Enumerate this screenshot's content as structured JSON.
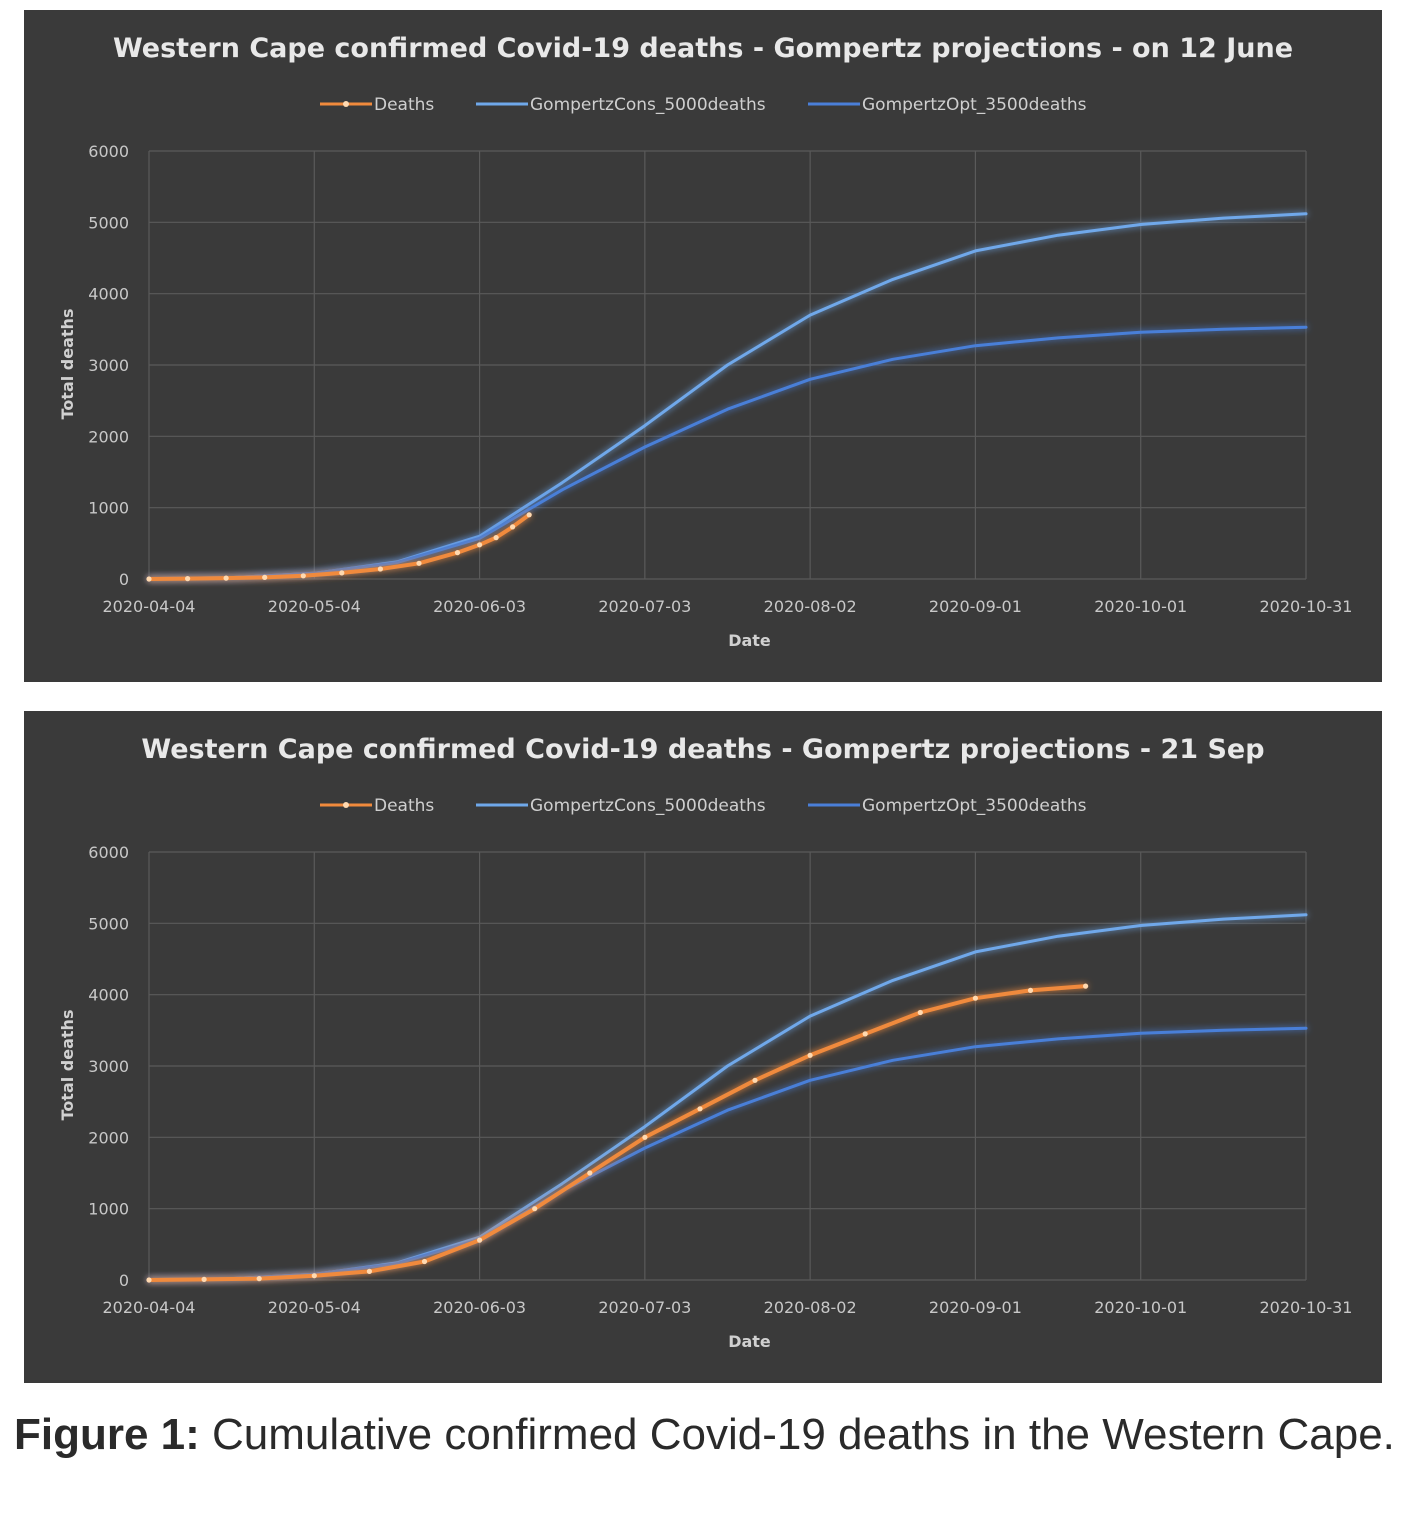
{
  "chart_data": [
    {
      "type": "line",
      "title": "Western Cape confirmed Covid-19 deaths - Gompertz projections - on 12 June",
      "xlabel": "Date",
      "ylabel": "Total deaths",
      "ylim": [
        0,
        6000
      ],
      "xlim": [
        "2020-04-04",
        "2020-10-31"
      ],
      "x_ticks": [
        "2020-04-04",
        "2020-05-04",
        "2020-06-03",
        "2020-07-03",
        "2020-08-02",
        "2020-09-01",
        "2020-10-01",
        "2020-10-31"
      ],
      "y_ticks": [
        0,
        1000,
        2000,
        3000,
        4000,
        5000,
        6000
      ],
      "grid": true,
      "legend_position": "top",
      "series": [
        {
          "name": "Deaths",
          "color": "#f08a3c",
          "marker": true,
          "points": [
            [
              "2020-04-04",
              0
            ],
            [
              "2020-04-11",
              6
            ],
            [
              "2020-04-18",
              12
            ],
            [
              "2020-04-25",
              22
            ],
            [
              "2020-05-02",
              45
            ],
            [
              "2020-05-09",
              85
            ],
            [
              "2020-05-16",
              140
            ],
            [
              "2020-05-23",
              220
            ],
            [
              "2020-05-30",
              370
            ],
            [
              "2020-06-03",
              480
            ],
            [
              "2020-06-06",
              580
            ],
            [
              "2020-06-09",
              730
            ],
            [
              "2020-06-12",
              900
            ]
          ]
        },
        {
          "name": "GompertzCons_5000deaths",
          "color": "#6fa8ea",
          "points": [
            [
              "2020-04-04",
              5
            ],
            [
              "2020-04-19",
              20
            ],
            [
              "2020-05-04",
              80
            ],
            [
              "2020-05-19",
              240
            ],
            [
              "2020-06-03",
              600
            ],
            [
              "2020-06-18",
              1350
            ],
            [
              "2020-07-03",
              2150
            ],
            [
              "2020-07-18",
              3000
            ],
            [
              "2020-08-02",
              3700
            ],
            [
              "2020-08-17",
              4200
            ],
            [
              "2020-09-01",
              4600
            ],
            [
              "2020-09-16",
              4820
            ],
            [
              "2020-10-01",
              4970
            ],
            [
              "2020-10-16",
              5060
            ],
            [
              "2020-10-31",
              5120
            ]
          ]
        },
        {
          "name": "GompertzOpt_3500deaths",
          "color": "#4a7fd8",
          "points": [
            [
              "2020-04-04",
              5
            ],
            [
              "2020-04-19",
              20
            ],
            [
              "2020-05-04",
              80
            ],
            [
              "2020-05-19",
              230
            ],
            [
              "2020-06-03",
              570
            ],
            [
              "2020-06-18",
              1250
            ],
            [
              "2020-07-03",
              1850
            ],
            [
              "2020-07-18",
              2380
            ],
            [
              "2020-08-02",
              2800
            ],
            [
              "2020-08-17",
              3080
            ],
            [
              "2020-09-01",
              3270
            ],
            [
              "2020-09-16",
              3380
            ],
            [
              "2020-10-01",
              3460
            ],
            [
              "2020-10-16",
              3500
            ],
            [
              "2020-10-31",
              3530
            ]
          ]
        }
      ]
    },
    {
      "type": "line",
      "title": "Western Cape confirmed Covid-19 deaths - Gompertz projections - 21 Sep",
      "xlabel": "Date",
      "ylabel": "Total deaths",
      "ylim": [
        0,
        6000
      ],
      "xlim": [
        "2020-04-04",
        "2020-10-31"
      ],
      "x_ticks": [
        "2020-04-04",
        "2020-05-04",
        "2020-06-03",
        "2020-07-03",
        "2020-08-02",
        "2020-09-01",
        "2020-10-01",
        "2020-10-31"
      ],
      "y_ticks": [
        0,
        1000,
        2000,
        3000,
        4000,
        5000,
        6000
      ],
      "grid": true,
      "legend_position": "top",
      "series": [
        {
          "name": "Deaths",
          "color": "#f08a3c",
          "marker": true,
          "points": [
            [
              "2020-04-04",
              0
            ],
            [
              "2020-04-14",
              8
            ],
            [
              "2020-04-24",
              20
            ],
            [
              "2020-05-04",
              60
            ],
            [
              "2020-05-14",
              120
            ],
            [
              "2020-05-24",
              260
            ],
            [
              "2020-06-03",
              560
            ],
            [
              "2020-06-13",
              1000
            ],
            [
              "2020-06-23",
              1500
            ],
            [
              "2020-07-03",
              2000
            ],
            [
              "2020-07-13",
              2400
            ],
            [
              "2020-07-23",
              2800
            ],
            [
              "2020-08-02",
              3150
            ],
            [
              "2020-08-12",
              3450
            ],
            [
              "2020-08-22",
              3750
            ],
            [
              "2020-09-01",
              3950
            ],
            [
              "2020-09-11",
              4060
            ],
            [
              "2020-09-21",
              4120
            ]
          ]
        },
        {
          "name": "GompertzCons_5000deaths",
          "color": "#6fa8ea",
          "points": [
            [
              "2020-04-04",
              5
            ],
            [
              "2020-04-19",
              20
            ],
            [
              "2020-05-04",
              80
            ],
            [
              "2020-05-19",
              240
            ],
            [
              "2020-06-03",
              600
            ],
            [
              "2020-06-18",
              1350
            ],
            [
              "2020-07-03",
              2150
            ],
            [
              "2020-07-18",
              3000
            ],
            [
              "2020-08-02",
              3700
            ],
            [
              "2020-08-17",
              4200
            ],
            [
              "2020-09-01",
              4600
            ],
            [
              "2020-09-16",
              4820
            ],
            [
              "2020-10-01",
              4970
            ],
            [
              "2020-10-16",
              5060
            ],
            [
              "2020-10-31",
              5120
            ]
          ]
        },
        {
          "name": "GompertzOpt_3500deaths",
          "color": "#4a7fd8",
          "points": [
            [
              "2020-04-04",
              5
            ],
            [
              "2020-04-19",
              20
            ],
            [
              "2020-05-04",
              80
            ],
            [
              "2020-05-19",
              230
            ],
            [
              "2020-06-03",
              570
            ],
            [
              "2020-06-18",
              1250
            ],
            [
              "2020-07-03",
              1850
            ],
            [
              "2020-07-18",
              2380
            ],
            [
              "2020-08-02",
              2800
            ],
            [
              "2020-08-17",
              3080
            ],
            [
              "2020-09-01",
              3270
            ],
            [
              "2020-09-16",
              3380
            ],
            [
              "2020-10-01",
              3460
            ],
            [
              "2020-10-16",
              3500
            ],
            [
              "2020-10-31",
              3530
            ]
          ]
        }
      ]
    }
  ],
  "caption": {
    "label": "Figure 1:",
    "text": " Cumulative confirmed Covid-19 deaths in the Western Cape."
  }
}
